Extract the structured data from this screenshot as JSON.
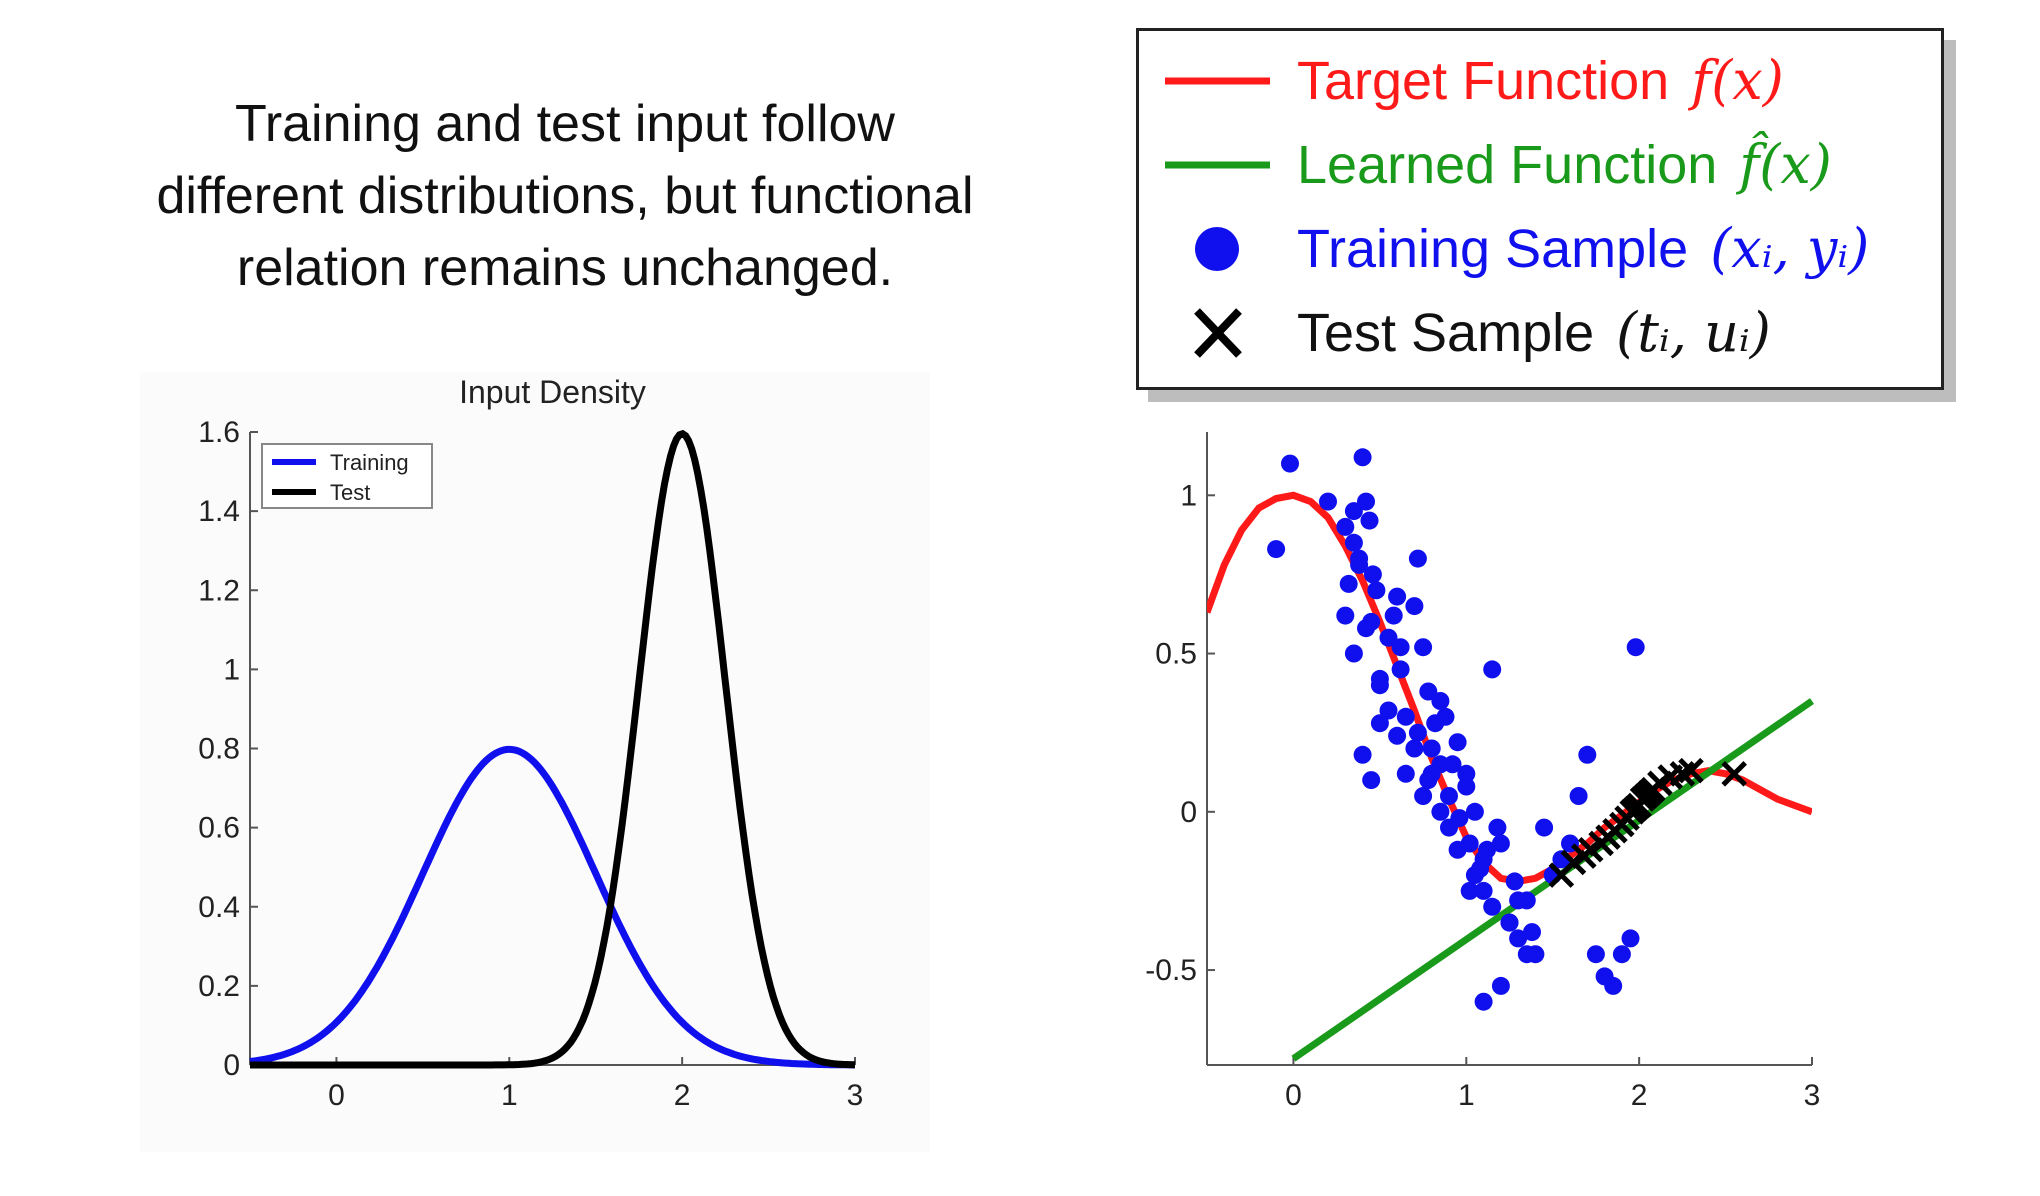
{
  "caption": {
    "line1": "Training and test input follow",
    "line2": "different distributions, but functional",
    "line3": "relation remains unchanged."
  },
  "legend": {
    "target": {
      "label": "Target Function",
      "math": "f(x)",
      "color": "#ff1a1a"
    },
    "learned": {
      "label": "Learned Function",
      "math": "f̂(x)",
      "color": "#1a9a1a"
    },
    "training": {
      "label": "Training Sample",
      "math": "(xᵢ, yᵢ)",
      "color": "#1010ee"
    },
    "test": {
      "label": "Test Sample",
      "math": "(tᵢ, uᵢ)",
      "color": "#000000"
    }
  },
  "chart_data": [
    {
      "type": "line",
      "title": "Input Density",
      "xlim": [
        -0.5,
        3
      ],
      "ylim": [
        0,
        1.6
      ],
      "xticks": [
        0,
        1,
        2,
        3
      ],
      "yticks": [
        0,
        0.2,
        0.4,
        0.6,
        0.8,
        1,
        1.2,
        1.4,
        1.6
      ],
      "legend_position": "top-left",
      "series": [
        {
          "name": "Training",
          "color": "#1010ee",
          "curve": "gaussian",
          "mean": 1,
          "sd": 0.5,
          "x_range": [
            -0.5,
            3
          ]
        },
        {
          "name": "Test",
          "color": "#000000",
          "curve": "gaussian",
          "mean": 2,
          "sd": 0.25,
          "x_range": [
            -0.5,
            3
          ]
        }
      ]
    },
    {
      "type": "scatter",
      "xlim": [
        -0.5,
        3
      ],
      "ylim": [
        -0.8,
        1.2
      ],
      "xticks": [
        0,
        1,
        2,
        3
      ],
      "yticks": [
        -0.5,
        0,
        0.5,
        1
      ],
      "series": [
        {
          "name": "Target Function",
          "kind": "line",
          "color": "#ff1a1a",
          "x": [
            -0.5,
            -0.4,
            -0.3,
            -0.2,
            -0.1,
            0,
            0.1,
            0.2,
            0.3,
            0.4,
            0.5,
            0.6,
            0.7,
            0.8,
            0.9,
            1,
            1.1,
            1.2,
            1.3,
            1.4,
            1.5,
            1.6,
            1.7,
            1.8,
            1.9,
            2,
            2.1,
            2.2,
            2.3,
            2.4,
            2.5,
            2.6,
            2.7,
            2.8,
            2.9,
            3
          ],
          "y": [
            0.63,
            0.78,
            0.89,
            0.96,
            0.99,
            1.0,
            0.98,
            0.93,
            0.84,
            0.73,
            0.6,
            0.46,
            0.32,
            0.17,
            0.04,
            -0.08,
            -0.16,
            -0.21,
            -0.22,
            -0.21,
            -0.18,
            -0.14,
            -0.1,
            -0.05,
            -0.01,
            0.03,
            0.07,
            0.1,
            0.12,
            0.13,
            0.12,
            0.1,
            0.07,
            0.04,
            0.02,
            0.0
          ]
        },
        {
          "name": "Learned Function",
          "kind": "line",
          "color": "#1a9a1a",
          "x": [
            0,
            3
          ],
          "y": [
            -0.78,
            0.35
          ]
        },
        {
          "name": "Training Sample",
          "kind": "points",
          "color": "#1010ee",
          "x": [
            -0.1,
            -0.02,
            0.2,
            0.3,
            0.32,
            0.35,
            0.38,
            0.4,
            0.42,
            0.44,
            0.46,
            0.48,
            0.3,
            0.35,
            0.42,
            0.5,
            0.55,
            0.6,
            0.62,
            0.65,
            0.7,
            0.72,
            0.75,
            0.78,
            0.8,
            0.82,
            0.85,
            0.88,
            0.9,
            0.95,
            1.0,
            1.02,
            1.05,
            1.1,
            1.15,
            0.4,
            0.45,
            0.5,
            0.55,
            0.6,
            0.65,
            0.7,
            0.75,
            0.8,
            0.85,
            0.9,
            0.95,
            1.0,
            1.05,
            1.1,
            1.15,
            1.2,
            1.25,
            1.3,
            1.35,
            1.4,
            1.45,
            1.5,
            1.55,
            1.6,
            1.65,
            1.7,
            1.75,
            1.8,
            1.85,
            1.9,
            1.95,
            1.98,
            1.1,
            1.2,
            1.25,
            1.3,
            1.35,
            0.35,
            0.38,
            0.45,
            0.5,
            0.58,
            0.62,
            0.72,
            0.78,
            0.85,
            0.92,
            0.96,
            1.02,
            1.08,
            1.12,
            1.18,
            1.28,
            1.38
          ],
          "y": [
            0.83,
            1.1,
            0.98,
            0.9,
            0.72,
            0.85,
            0.8,
            1.12,
            0.98,
            0.92,
            0.75,
            0.7,
            0.62,
            0.5,
            0.58,
            0.42,
            0.55,
            0.68,
            0.45,
            0.3,
            0.65,
            0.8,
            0.52,
            0.38,
            0.2,
            0.28,
            0.15,
            0.3,
            0.05,
            0.22,
            0.12,
            -0.1,
            0.0,
            -0.15,
            0.45,
            0.18,
            0.1,
            0.28,
            0.32,
            0.24,
            0.12,
            0.2,
            0.05,
            0.12,
            0.0,
            -0.05,
            -0.12,
            0.08,
            -0.2,
            -0.25,
            -0.3,
            -0.1,
            -0.35,
            -0.4,
            -0.28,
            -0.45,
            -0.05,
            -0.2,
            -0.15,
            -0.1,
            0.05,
            0.18,
            -0.45,
            -0.52,
            -0.55,
            -0.45,
            -0.4,
            0.52,
            -0.6,
            -0.55,
            -0.35,
            -0.28,
            -0.45,
            0.95,
            0.78,
            0.6,
            0.4,
            0.62,
            0.52,
            0.25,
            0.1,
            0.35,
            0.15,
            -0.02,
            -0.25,
            -0.18,
            -0.12,
            -0.05,
            -0.22,
            -0.38
          ]
        },
        {
          "name": "Test Sample",
          "kind": "x-markers",
          "color": "#000000",
          "x": [
            1.55,
            1.62,
            1.68,
            1.72,
            1.78,
            1.82,
            1.86,
            1.9,
            1.93,
            1.96,
            1.98,
            2.0,
            2.02,
            2.04,
            2.06,
            2.08,
            2.12,
            2.18,
            2.25,
            2.3,
            2.55
          ],
          "y": [
            -0.2,
            -0.16,
            -0.14,
            -0.12,
            -0.1,
            -0.08,
            -0.06,
            -0.04,
            -0.02,
            0.0,
            0.01,
            0.02,
            0.04,
            0.05,
            0.06,
            0.07,
            0.09,
            0.11,
            0.12,
            0.13,
            0.12
          ]
        }
      ]
    }
  ]
}
